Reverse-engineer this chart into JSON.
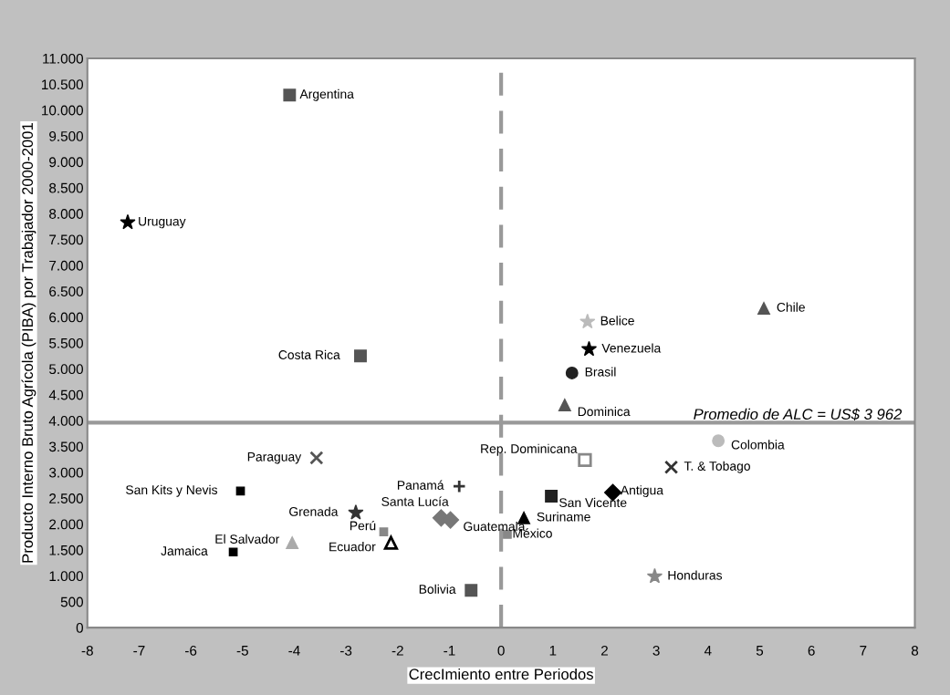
{
  "chart_data": {
    "type": "scatter",
    "xlabel": "CrecImiento entre Periodos",
    "ylabel": "Producto Interno Bruto Agrícola (PIBA) por Trabajador 2000-2001",
    "xlim": [
      -8,
      8
    ],
    "xticks": [
      -8,
      -7,
      -6,
      -5,
      -4,
      -3,
      -2,
      -1,
      0,
      1,
      2,
      3,
      4,
      5,
      6,
      7,
      8
    ],
    "ylim": [
      0,
      11000
    ],
    "yticks": [
      0,
      500,
      {
        "value": 1000,
        "label": "1.000"
      },
      {
        "value": 1500,
        "label": "1.500"
      },
      {
        "value": 2000,
        "label": "2.000"
      },
      {
        "value": 2500,
        "label": "2.500"
      },
      {
        "value": 3000,
        "label": "3.000"
      },
      {
        "value": 3500,
        "label": "3.500"
      },
      {
        "value": 4000,
        "label": "4.000"
      },
      {
        "value": 4500,
        "label": "4.500"
      },
      {
        "value": 5000,
        "label": "5.000"
      },
      {
        "value": 5500,
        "label": "5.500"
      },
      {
        "value": 6000,
        "label": "6.000"
      },
      {
        "value": 6500,
        "label": "6.500"
      },
      {
        "value": 7000,
        "label": "7.000"
      },
      {
        "value": 7500,
        "label": "7.500"
      },
      {
        "value": 8000,
        "label": "8.000"
      },
      {
        "value": 8500,
        "label": "8.500"
      },
      {
        "value": 9000,
        "label": "9.000"
      },
      {
        "value": 9500,
        "label": "9.500"
      },
      {
        "value": 10000,
        "label": "10.000"
      },
      {
        "value": 10500,
        "label": "10.500"
      },
      {
        "value": 11000,
        "label": "11.000"
      }
    ],
    "grid": false,
    "ref_lines": [
      {
        "axis": "y",
        "value": 3962,
        "label": "Promedio de ALC = US$ 3 962",
        "color": "#999999",
        "line_style": "solid"
      },
      {
        "axis": "x",
        "value": 0,
        "color": "#999999",
        "line_style": "dashed"
      }
    ],
    "series": [
      {
        "name": "Argentina",
        "color": "#555555",
        "marker": "square",
        "x": [
          -4.09
        ],
        "values": [
          10290
        ]
      },
      {
        "name": "Uruguay",
        "color": "#000000",
        "marker": "star",
        "x": [
          -7.22
        ],
        "values": [
          7830
        ]
      },
      {
        "name": "Costa Rica",
        "color": "#555555",
        "marker": "square",
        "x": [
          -2.72
        ],
        "values": [
          5250
        ]
      },
      {
        "name": "Chile",
        "color": "#555555",
        "marker": "triangle",
        "x": [
          5.08
        ],
        "values": [
          6170
        ]
      },
      {
        "name": "Belice",
        "color": "#bbbbbb",
        "marker": "star",
        "x": [
          1.67
        ],
        "values": [
          5910
        ]
      },
      {
        "name": "Venezuela",
        "color": "#000000",
        "marker": "star",
        "x": [
          1.7
        ],
        "values": [
          5380
        ]
      },
      {
        "name": "Brasil",
        "color": "#222222",
        "marker": "circle",
        "x": [
          1.37
        ],
        "values": [
          4920
        ]
      },
      {
        "name": "Dominica",
        "color": "#555555",
        "marker": "triangle",
        "x": [
          1.23
        ],
        "values": [
          4300
        ]
      },
      {
        "name": "Colombia",
        "color": "#bbbbbb",
        "marker": "circle",
        "x": [
          4.2
        ],
        "values": [
          3610
        ]
      },
      {
        "name": "Rep. Dominicana",
        "color": "#888888",
        "marker": "square-open",
        "x": [
          1.62
        ],
        "values": [
          3240
        ]
      },
      {
        "name": "T. & Tobago",
        "color": "#333333",
        "marker": "cross",
        "x": [
          3.29
        ],
        "values": [
          3100
        ]
      },
      {
        "name": "Antigua",
        "color": "#000000",
        "marker": "diamond",
        "x": [
          2.16
        ],
        "values": [
          2610
        ]
      },
      {
        "name": "San Vicente",
        "color": "#222222",
        "marker": "square",
        "x": [
          0.97
        ],
        "values": [
          2540
        ]
      },
      {
        "name": "Suriname",
        "color": "#000000",
        "marker": "triangle",
        "x": [
          0.44
        ],
        "values": [
          2120
        ]
      },
      {
        "name": "México",
        "color": "#888888",
        "marker": "square",
        "x": [
          0.12
        ],
        "values": [
          1800
        ]
      },
      {
        "name": "Honduras",
        "color": "#888888",
        "marker": "star",
        "x": [
          2.97
        ],
        "values": [
          990
        ]
      },
      {
        "name": "Paraguay",
        "color": "#555555",
        "marker": "cross",
        "x": [
          -3.57
        ],
        "values": [
          3280
        ]
      },
      {
        "name": "San Kits y Nevis",
        "color": "#000000",
        "marker": "square",
        "x": [
          -5.04
        ],
        "values": [
          2640
        ]
      },
      {
        "name": "Grenada",
        "color": "#333333",
        "marker": "star",
        "x": [
          -2.81
        ],
        "values": [
          2220
        ]
      },
      {
        "name": "Santa Lucía",
        "color": "#777777",
        "marker": "diamond",
        "x": [
          -1.16
        ],
        "values": [
          2120
        ]
      },
      {
        "name": "Guatemala",
        "color": "#777777",
        "marker": "diamond",
        "x": [
          -0.98
        ],
        "values": [
          2080
        ]
      },
      {
        "name": "Panamá",
        "color": "#333333",
        "marker": "plus",
        "x": [
          -0.81
        ],
        "values": [
          2730
        ]
      },
      {
        "name": "El Salvador",
        "color": "#aaaaaa",
        "marker": "triangle",
        "x": [
          -4.04
        ],
        "values": [
          1640
        ]
      },
      {
        "name": "Jamaica",
        "color": "#000000",
        "marker": "square",
        "x": [
          -5.18
        ],
        "values": [
          1460
        ]
      },
      {
        "name": "Perú",
        "color": "#888888",
        "marker": "square",
        "x": [
          -2.27
        ],
        "values": [
          1850
        ]
      },
      {
        "name": "Ecuador",
        "color": "#000000",
        "marker": "triangle-open",
        "x": [
          -2.13
        ],
        "values": [
          1640
        ]
      },
      {
        "name": "Bolivia",
        "color": "#555555",
        "marker": "square",
        "x": [
          -0.58
        ],
        "values": [
          720
        ]
      }
    ]
  }
}
